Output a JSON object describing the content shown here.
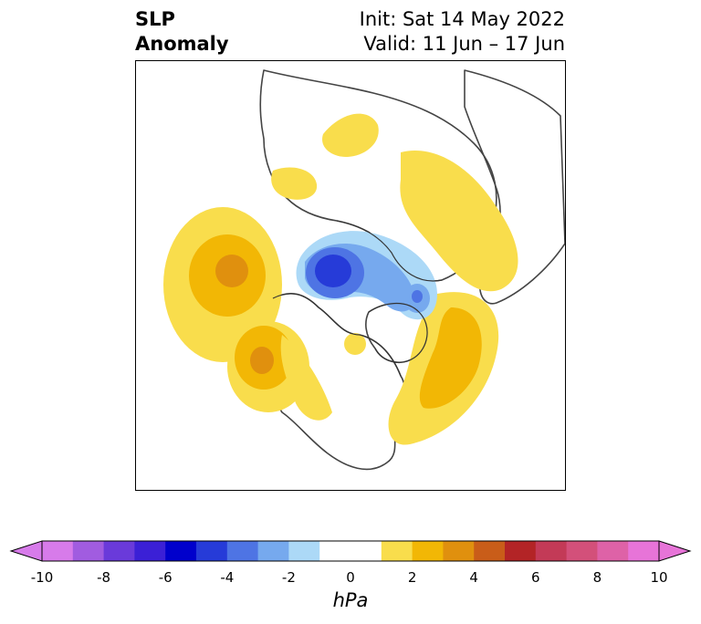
{
  "header": {
    "title_line1": "SLP",
    "title_line2": "Anomaly",
    "init_text": "Init: Sat 14 May 2022",
    "valid_text": "Valid: 11 Jun – 17 Jun"
  },
  "map": {
    "projection": "north-polar-stereographic",
    "features": [
      {
        "name": "negative-anomaly-center",
        "sign": "negative",
        "peak_hpa": -5,
        "region": "Beaufort Sea / western Arctic"
      },
      {
        "name": "negative-anomaly-secondary",
        "sign": "negative",
        "peak_hpa": -3,
        "region": "Kara Sea / Siberian Arctic"
      },
      {
        "name": "positive-anomaly-bering",
        "sign": "positive",
        "peak_hpa": 3,
        "region": "Bering Sea / Aleutians"
      },
      {
        "name": "positive-anomaly-gulf-of-alaska",
        "sign": "positive",
        "peak_hpa": 3,
        "region": "Gulf of Alaska"
      },
      {
        "name": "positive-anomaly-north-atlantic",
        "sign": "positive",
        "peak_hpa": 2.5,
        "region": "North Atlantic / Greenland"
      },
      {
        "name": "positive-anomaly-europe",
        "sign": "positive",
        "peak_hpa": 2,
        "region": "Scandinavia / Eastern Europe"
      }
    ]
  },
  "colorbar": {
    "units": "hPa",
    "min": -10,
    "max": 10,
    "tick_labels": [
      "-10",
      "-8",
      "-6",
      "-4",
      "-2",
      "0",
      "2",
      "4",
      "6",
      "8",
      "10"
    ],
    "colors": [
      "#d77bea",
      "#a15ce0",
      "#6a3ada",
      "#3b20d6",
      "#0000cc",
      "#263bd8",
      "#4e74e4",
      "#76a9ee",
      "#acd9f7",
      "#ffffff",
      "#ffffff",
      "#f9dd4c",
      "#f2b705",
      "#e0900e",
      "#c95d19",
      "#b32426",
      "#c33a57",
      "#d3507a",
      "#de62a7",
      "#e774d8"
    ]
  }
}
